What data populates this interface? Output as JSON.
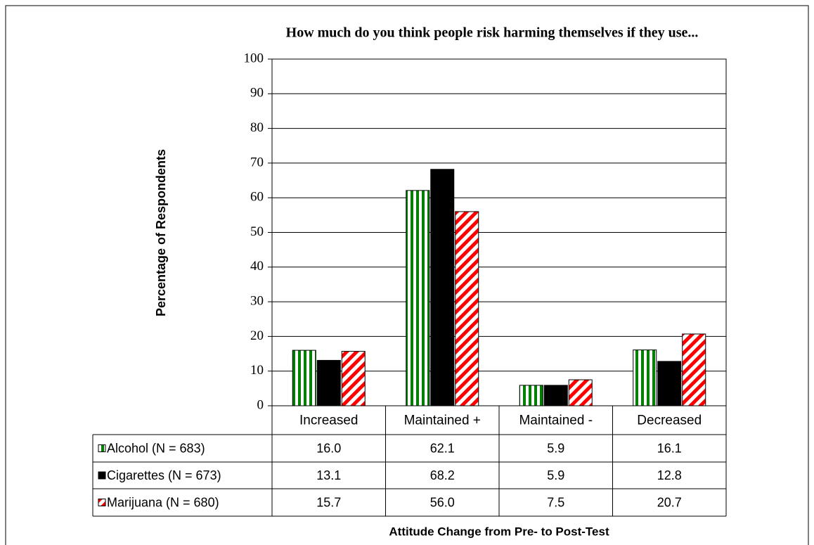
{
  "chart_data": {
    "type": "bar",
    "title": "How much do you think people risk harming themselves if they use...",
    "y_label": "Percentage of Respondents",
    "x_label": "Attitude Change from Pre- to Post-Test",
    "categories": [
      "Increased",
      "Maintained +",
      "Maintained -",
      "Decreased"
    ],
    "series": [
      {
        "name": "Alcohol (N = 683)",
        "color": "#008000",
        "values": [
          16,
          62.1,
          5.9,
          16.1
        ],
        "value_labels": [
          "16.0",
          "62.1",
          "5.9",
          "16.1"
        ]
      },
      {
        "name": "Cigarettes (N = 673)",
        "color": "#000000",
        "values": [
          13.1,
          68.2,
          5.9,
          12.8
        ],
        "value_labels": [
          "13.1",
          "68.2",
          "5.9",
          "12.8"
        ]
      },
      {
        "name": "Marijuana (N = 680)",
        "color": "#ff0000",
        "values": [
          15.7,
          56,
          7.5,
          20.7
        ],
        "value_labels": [
          "15.7",
          "56.0",
          "7.5",
          "20.7"
        ]
      }
    ],
    "ylim": [
      0,
      100
    ],
    "yticks": [
      0,
      10,
      20,
      30,
      40,
      50,
      60,
      70,
      80,
      90,
      100
    ],
    "grid": true
  }
}
